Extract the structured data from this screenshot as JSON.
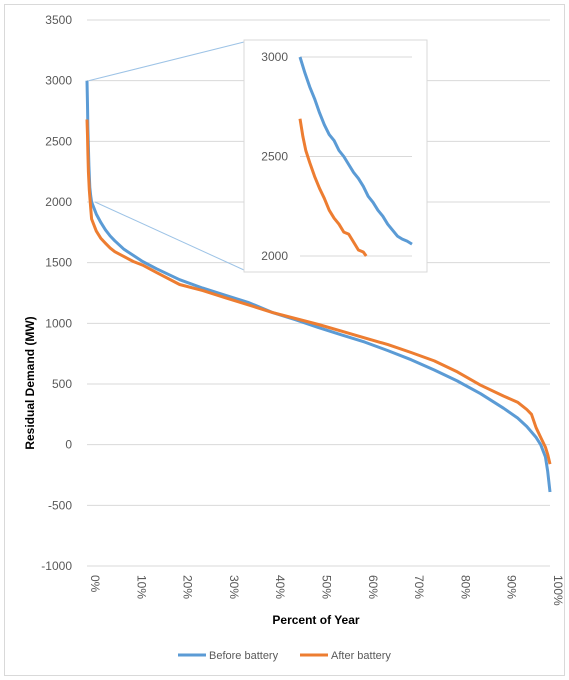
{
  "chart_data": [
    {
      "type": "line",
      "title": "",
      "xlabel": "Percent of Year",
      "ylabel": "Residual Demand (MW)",
      "ylim": [
        -1000,
        3500
      ],
      "xlim": [
        0,
        100
      ],
      "yticks": [
        "3500",
        "3000",
        "2500",
        "2000",
        "1500",
        "1000",
        "500",
        "0",
        "-500",
        "-1000"
      ],
      "xticks": [
        "0%",
        "10%",
        "20%",
        "30%",
        "40%",
        "50%",
        "60%",
        "70%",
        "80%",
        "90%",
        "100%"
      ],
      "grid": "horizontal",
      "legend_position": "bottom",
      "series": [
        {
          "name": "Before battery",
          "color": "#5b9bd5",
          "points": [
            [
              0,
              3000
            ],
            [
              0.1,
              2800
            ],
            [
              0.2,
              2600
            ],
            [
              0.4,
              2300
            ],
            [
              0.6,
              2120
            ],
            [
              0.8,
              2050
            ],
            [
              1,
              2000
            ],
            [
              2,
              1900
            ],
            [
              3,
              1830
            ],
            [
              4,
              1770
            ],
            [
              5,
              1720
            ],
            [
              6,
              1680
            ],
            [
              8,
              1610
            ],
            [
              10,
              1560
            ],
            [
              12,
              1510
            ],
            [
              15,
              1450
            ],
            [
              20,
              1360
            ],
            [
              25,
              1290
            ],
            [
              30,
              1230
            ],
            [
              35,
              1170
            ],
            [
              40,
              1090
            ],
            [
              45,
              1030
            ],
            [
              50,
              965
            ],
            [
              55,
              905
            ],
            [
              60,
              845
            ],
            [
              65,
              775
            ],
            [
              70,
              700
            ],
            [
              75,
              615
            ],
            [
              80,
              525
            ],
            [
              85,
              420
            ],
            [
              90,
              300
            ],
            [
              93,
              220
            ],
            [
              95,
              150
            ],
            [
              97,
              60
            ],
            [
              98,
              0
            ],
            [
              99,
              -100
            ],
            [
              99.5,
              -220
            ],
            [
              100,
              -390
            ]
          ]
        },
        {
          "name": "After battery",
          "color": "#ed7d31",
          "points": [
            [
              0,
              2680
            ],
            [
              0.1,
              2550
            ],
            [
              0.2,
              2400
            ],
            [
              0.3,
              2250
            ],
            [
              0.5,
              2100
            ],
            [
              0.8,
              1950
            ],
            [
              1,
              1860
            ],
            [
              2,
              1760
            ],
            [
              3,
              1700
            ],
            [
              4,
              1660
            ],
            [
              5,
              1620
            ],
            [
              6,
              1590
            ],
            [
              8,
              1550
            ],
            [
              10,
              1510
            ],
            [
              12,
              1480
            ],
            [
              15,
              1420
            ],
            [
              20,
              1320
            ],
            [
              25,
              1270
            ],
            [
              30,
              1210
            ],
            [
              35,
              1150
            ],
            [
              40,
              1090
            ],
            [
              45,
              1040
            ],
            [
              50,
              990
            ],
            [
              55,
              935
            ],
            [
              60,
              880
            ],
            [
              65,
              825
            ],
            [
              70,
              760
            ],
            [
              75,
              690
            ],
            [
              80,
              600
            ],
            [
              85,
              490
            ],
            [
              90,
              400
            ],
            [
              93,
              350
            ],
            [
              95,
              290
            ],
            [
              96,
              250
            ],
            [
              97,
              140
            ],
            [
              98,
              60
            ],
            [
              99,
              -20
            ],
            [
              99.5,
              -80
            ],
            [
              100,
              -160
            ]
          ]
        }
      ]
    },
    {
      "type": "line",
      "title": "",
      "ylim": [
        2000,
        3000
      ],
      "yticks": [
        "3000",
        "2500",
        "2000"
      ],
      "grid": "horizontal",
      "series": [
        {
          "name": "Before battery",
          "color": "#5b9bd5",
          "points": [
            [
              0,
              3000
            ],
            [
              0.05,
              2920
            ],
            [
              0.1,
              2850
            ],
            [
              0.15,
              2790
            ],
            [
              0.2,
              2720
            ],
            [
              0.25,
              2660
            ],
            [
              0.3,
              2610
            ],
            [
              0.35,
              2580
            ],
            [
              0.4,
              2530
            ],
            [
              0.45,
              2500
            ],
            [
              0.5,
              2460
            ],
            [
              0.55,
              2420
            ],
            [
              0.6,
              2390
            ],
            [
              0.65,
              2350
            ],
            [
              0.7,
              2300
            ],
            [
              0.75,
              2270
            ],
            [
              0.8,
              2230
            ],
            [
              0.85,
              2200
            ],
            [
              0.9,
              2160
            ],
            [
              0.95,
              2130
            ],
            [
              1,
              2100
            ],
            [
              1.05,
              2085
            ],
            [
              1.1,
              2075
            ],
            [
              1.15,
              2060
            ]
          ]
        },
        {
          "name": "After battery",
          "color": "#ed7d31",
          "points": [
            [
              0,
              2690
            ],
            [
              0.03,
              2600
            ],
            [
              0.06,
              2530
            ],
            [
              0.1,
              2470
            ],
            [
              0.15,
              2400
            ],
            [
              0.2,
              2340
            ],
            [
              0.25,
              2290
            ],
            [
              0.3,
              2230
            ],
            [
              0.35,
              2190
            ],
            [
              0.4,
              2160
            ],
            [
              0.45,
              2120
            ],
            [
              0.5,
              2110
            ],
            [
              0.55,
              2070
            ],
            [
              0.6,
              2030
            ],
            [
              0.65,
              2020
            ],
            [
              0.68,
              2000
            ]
          ]
        }
      ]
    }
  ],
  "legend": {
    "before": "Before battery",
    "after": "After battery"
  }
}
